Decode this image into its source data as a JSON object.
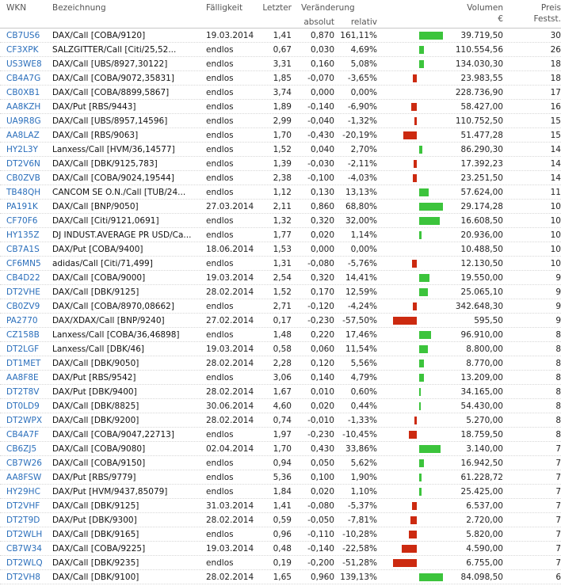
{
  "header": {
    "wkn": "WKN",
    "bezeichnung": "Bezeichnung",
    "faelligkeit": "Fälligkeit",
    "letzter": "Letzter",
    "veraenderung": "Veränderung",
    "absolut": "absolut",
    "relativ": "relativ",
    "volumen": "Volumen",
    "volumen_unit": "€",
    "preis": "Preis",
    "feststellungen": "Festst."
  },
  "colors": {
    "positive_bar": "#3cc43c",
    "negative_bar": "#cc2a10",
    "link": "#2a6ebb"
  },
  "rows": [
    {
      "wkn": "CB7US6",
      "bez": "DAX/Call [COBA/9120]",
      "fae": "19.03.2014",
      "letzter": "1,41",
      "abs": "0,870",
      "rel": "161,11%",
      "change_pct": 161.11,
      "vol": "39.719,50",
      "pf": "30"
    },
    {
      "wkn": "CF3XPK",
      "bez": "SALZGITTER/Call [Citi/25,52...",
      "fae": "endlos",
      "letzter": "0,67",
      "abs": "0,030",
      "rel": "4,69%",
      "change_pct": 4.69,
      "vol": "110.554,56",
      "pf": "26"
    },
    {
      "wkn": "US3WE8",
      "bez": "DAX/Call [UBS/8927,30122]",
      "fae": "endlos",
      "letzter": "3,31",
      "abs": "0,160",
      "rel": "5,08%",
      "change_pct": 5.08,
      "vol": "134.030,30",
      "pf": "18"
    },
    {
      "wkn": "CB4A7G",
      "bez": "DAX/Call [COBA/9072,35831]",
      "fae": "endlos",
      "letzter": "1,85",
      "abs": "-0,070",
      "rel": "-3,65%",
      "change_pct": -3.65,
      "vol": "23.983,55",
      "pf": "18"
    },
    {
      "wkn": "CB0XB1",
      "bez": "DAX/Call [COBA/8899,5867]",
      "fae": "endlos",
      "letzter": "3,74",
      "abs": "0,000",
      "rel": "0,00%",
      "change_pct": 0,
      "vol": "228.736,90",
      "pf": "17"
    },
    {
      "wkn": "AA8KZH",
      "bez": "DAX/Put [RBS/9443]",
      "fae": "endlos",
      "letzter": "1,89",
      "abs": "-0,140",
      "rel": "-6,90%",
      "change_pct": -6.9,
      "vol": "58.427,00",
      "pf": "16"
    },
    {
      "wkn": "UA9R8G",
      "bez": "DAX/Call [UBS/8957,14596]",
      "fae": "endlos",
      "letzter": "2,99",
      "abs": "-0,040",
      "rel": "-1,32%",
      "change_pct": -1.32,
      "vol": "110.752,50",
      "pf": "15"
    },
    {
      "wkn": "AA8LAZ",
      "bez": "DAX/Call [RBS/9063]",
      "fae": "endlos",
      "letzter": "1,70",
      "abs": "-0,430",
      "rel": "-20,19%",
      "change_pct": -20.19,
      "vol": "51.477,28",
      "pf": "15"
    },
    {
      "wkn": "HY2L3Y",
      "bez": "Lanxess/Call [HVM/36,14577]",
      "fae": "endlos",
      "letzter": "1,52",
      "abs": "0,040",
      "rel": "2,70%",
      "change_pct": 2.7,
      "vol": "86.290,30",
      "pf": "14"
    },
    {
      "wkn": "DT2V6N",
      "bez": "DAX/Call [DBK/9125,783]",
      "fae": "endlos",
      "letzter": "1,39",
      "abs": "-0,030",
      "rel": "-2,11%",
      "change_pct": -2.11,
      "vol": "17.392,23",
      "pf": "14"
    },
    {
      "wkn": "CB0ZVB",
      "bez": "DAX/Call [COBA/9024,19544]",
      "fae": "endlos",
      "letzter": "2,38",
      "abs": "-0,100",
      "rel": "-4,03%",
      "change_pct": -4.03,
      "vol": "23.251,50",
      "pf": "14"
    },
    {
      "wkn": "TB48QH",
      "bez": "CANCOM SE O.N./Call [TUB/24...",
      "fae": "endlos",
      "letzter": "1,12",
      "abs": "0,130",
      "rel": "13,13%",
      "change_pct": 13.13,
      "vol": "57.624,00",
      "pf": "11"
    },
    {
      "wkn": "PA191K",
      "bez": "DAX/Call [BNP/9050]",
      "fae": "27.03.2014",
      "letzter": "2,11",
      "abs": "0,860",
      "rel": "68,80%",
      "change_pct": 68.8,
      "vol": "29.174,28",
      "pf": "10"
    },
    {
      "wkn": "CF70F6",
      "bez": "DAX/Call [Citi/9121,0691]",
      "fae": "endlos",
      "letzter": "1,32",
      "abs": "0,320",
      "rel": "32,00%",
      "change_pct": 32.0,
      "vol": "16.608,50",
      "pf": "10"
    },
    {
      "wkn": "HY135Z",
      "bez": "DJ INDUST.AVERAGE PR USD/Ca...",
      "fae": "endlos",
      "letzter": "1,77",
      "abs": "0,020",
      "rel": "1,14%",
      "change_pct": 1.14,
      "vol": "20.936,00",
      "pf": "10"
    },
    {
      "wkn": "CB7A1S",
      "bez": "DAX/Put [COBA/9400]",
      "fae": "18.06.2014",
      "letzter": "1,53",
      "abs": "0,000",
      "rel": "0,00%",
      "change_pct": 0,
      "vol": "10.488,50",
      "pf": "10"
    },
    {
      "wkn": "CF6MN5",
      "bez": "adidas/Call [Citi/71,499]",
      "fae": "endlos",
      "letzter": "1,31",
      "abs": "-0,080",
      "rel": "-5,76%",
      "change_pct": -5.76,
      "vol": "12.130,50",
      "pf": "10"
    },
    {
      "wkn": "CB4D22",
      "bez": "DAX/Call [COBA/9000]",
      "fae": "19.03.2014",
      "letzter": "2,54",
      "abs": "0,320",
      "rel": "14,41%",
      "change_pct": 14.41,
      "vol": "19.550,00",
      "pf": "9"
    },
    {
      "wkn": "DT2VHE",
      "bez": "DAX/Call [DBK/9125]",
      "fae": "28.02.2014",
      "letzter": "1,52",
      "abs": "0,170",
      "rel": "12,59%",
      "change_pct": 12.59,
      "vol": "25.065,10",
      "pf": "9"
    },
    {
      "wkn": "CB0ZV9",
      "bez": "DAX/Call [COBA/8970,08662]",
      "fae": "endlos",
      "letzter": "2,71",
      "abs": "-0,120",
      "rel": "-4,24%",
      "change_pct": -4.24,
      "vol": "342.648,30",
      "pf": "9"
    },
    {
      "wkn": "PA2770",
      "bez": "DAX/XDAX/Call [BNP/9240]",
      "fae": "27.02.2014",
      "letzter": "0,17",
      "abs": "-0,230",
      "rel": "-57,50%",
      "change_pct": -57.5,
      "vol": "595,50",
      "pf": "9"
    },
    {
      "wkn": "CZ158B",
      "bez": "Lanxess/Call [COBA/36,46898]",
      "fae": "endlos",
      "letzter": "1,48",
      "abs": "0,220",
      "rel": "17,46%",
      "change_pct": 17.46,
      "vol": "96.910,00",
      "pf": "8"
    },
    {
      "wkn": "DT2LGF",
      "bez": "Lanxess/Call [DBK/46]",
      "fae": "19.03.2014",
      "letzter": "0,58",
      "abs": "0,060",
      "rel": "11,54%",
      "change_pct": 11.54,
      "vol": "8.800,00",
      "pf": "8"
    },
    {
      "wkn": "DT1MET",
      "bez": "DAX/Call [DBK/9050]",
      "fae": "28.02.2014",
      "letzter": "2,28",
      "abs": "0,120",
      "rel": "5,56%",
      "change_pct": 5.56,
      "vol": "8.770,00",
      "pf": "8"
    },
    {
      "wkn": "AA8F8E",
      "bez": "DAX/Put [RBS/9542]",
      "fae": "endlos",
      "letzter": "3,06",
      "abs": "0,140",
      "rel": "4,79%",
      "change_pct": 4.79,
      "vol": "13.209,00",
      "pf": "8"
    },
    {
      "wkn": "DT2T8V",
      "bez": "DAX/Put [DBK/9400]",
      "fae": "28.02.2014",
      "letzter": "1,67",
      "abs": "0,010",
      "rel": "0,60%",
      "change_pct": 0.6,
      "vol": "34.165,00",
      "pf": "8"
    },
    {
      "wkn": "DT0LD9",
      "bez": "DAX/Call [DBK/8825]",
      "fae": "30.06.2014",
      "letzter": "4,60",
      "abs": "0,020",
      "rel": "0,44%",
      "change_pct": 0.44,
      "vol": "54.430,00",
      "pf": "8"
    },
    {
      "wkn": "DT2WPX",
      "bez": "DAX/Call [DBK/9200]",
      "fae": "28.02.2014",
      "letzter": "0,74",
      "abs": "-0,010",
      "rel": "-1,33%",
      "change_pct": -1.33,
      "vol": "5.270,00",
      "pf": "8"
    },
    {
      "wkn": "CB4A7F",
      "bez": "DAX/Call [COBA/9047,22713]",
      "fae": "endlos",
      "letzter": "1,97",
      "abs": "-0,230",
      "rel": "-10,45%",
      "change_pct": -10.45,
      "vol": "18.759,50",
      "pf": "8"
    },
    {
      "wkn": "CB6ZJ5",
      "bez": "DAX/Call [COBA/9080]",
      "fae": "02.04.2014",
      "letzter": "1,70",
      "abs": "0,430",
      "rel": "33,86%",
      "change_pct": 33.86,
      "vol": "3.140,00",
      "pf": "7"
    },
    {
      "wkn": "CB7W26",
      "bez": "DAX/Call [COBA/9150]",
      "fae": "endlos",
      "letzter": "0,94",
      "abs": "0,050",
      "rel": "5,62%",
      "change_pct": 5.62,
      "vol": "16.942,50",
      "pf": "7"
    },
    {
      "wkn": "AA8FSW",
      "bez": "DAX/Put [RBS/9779]",
      "fae": "endlos",
      "letzter": "5,36",
      "abs": "0,100",
      "rel": "1,90%",
      "change_pct": 1.9,
      "vol": "61.228,72",
      "pf": "7"
    },
    {
      "wkn": "HY29HC",
      "bez": "DAX/Put [HVM/9437,85079]",
      "fae": "endlos",
      "letzter": "1,84",
      "abs": "0,020",
      "rel": "1,10%",
      "change_pct": 1.1,
      "vol": "25.425,00",
      "pf": "7"
    },
    {
      "wkn": "DT2VHF",
      "bez": "DAX/Call [DBK/9125]",
      "fae": "31.03.2014",
      "letzter": "1,41",
      "abs": "-0,080",
      "rel": "-5,37%",
      "change_pct": -5.37,
      "vol": "6.537,00",
      "pf": "7"
    },
    {
      "wkn": "DT2T9D",
      "bez": "DAX/Put [DBK/9300]",
      "fae": "28.02.2014",
      "letzter": "0,59",
      "abs": "-0,050",
      "rel": "-7,81%",
      "change_pct": -7.81,
      "vol": "2.720,00",
      "pf": "7"
    },
    {
      "wkn": "DT2WLH",
      "bez": "DAX/Call [DBK/9165]",
      "fae": "endlos",
      "letzter": "0,96",
      "abs": "-0,110",
      "rel": "-10,28%",
      "change_pct": -10.28,
      "vol": "5.820,00",
      "pf": "7"
    },
    {
      "wkn": "CB7W34",
      "bez": "DAX/Call [COBA/9225]",
      "fae": "19.03.2014",
      "letzter": "0,48",
      "abs": "-0,140",
      "rel": "-22,58%",
      "change_pct": -22.58,
      "vol": "4.590,00",
      "pf": "7"
    },
    {
      "wkn": "DT2WLQ",
      "bez": "DAX/Call [DBK/9235]",
      "fae": "endlos",
      "letzter": "0,19",
      "abs": "-0,200",
      "rel": "-51,28%",
      "change_pct": -51.28,
      "vol": "6.755,00",
      "pf": "7"
    },
    {
      "wkn": "DT2VH8",
      "bez": "DAX/Call [DBK/9100]",
      "fae": "28.02.2014",
      "letzter": "1,65",
      "abs": "0,960",
      "rel": "139,13%",
      "change_pct": 139.13,
      "vol": "84.098,50",
      "pf": "6"
    }
  ]
}
